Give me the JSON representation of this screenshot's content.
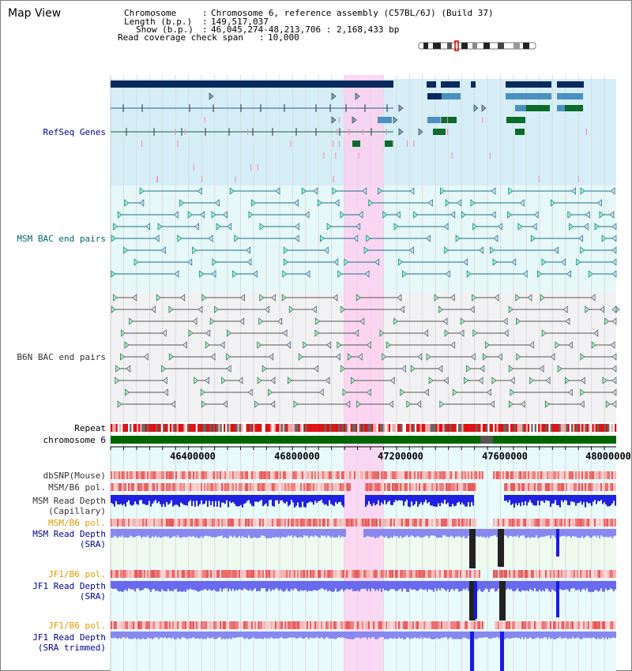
{
  "title": "Map View",
  "header": {
    "chromosome_key": "Chromosome",
    "chromosome_val": "Chromosome 6, reference assembly (C57BL/6J) (Build 37)",
    "length_key": "Length (b.p.)",
    "length_val": "149,517,037",
    "show_key": "Show (b.p.)",
    "show_val": "46,045,274-48,213,706 : 2,168,433 bp",
    "coverage_key": "Read coverage check span",
    "coverage_val": "10,000"
  },
  "tracks": {
    "refseq": "RefSeq Genes",
    "msm_bac": "MSM BAC end pairs",
    "b6n_bac": "B6N BAC end pairs",
    "repeat": "Repeat",
    "chromosome": "chromosome 6",
    "dbsnp": "dbSNP(Mouse)",
    "msm_b6_pol_1": "MSM/B6 pol.",
    "msm_read_depth_cap_1": "MSM Read Depth",
    "msm_read_depth_cap_2": "(Capillary)",
    "msm_b6_pol_2": "MSM/B6 pol.",
    "msm_read_depth_sra_1": "MSM Read Depth",
    "msm_read_depth_sra_2": "(SRA)",
    "jf1_b6_pol_1": "JF1/B6 pol.",
    "jf1_read_depth_sra_1": "JF1 Read Depth",
    "jf1_read_depth_sra_2": "(SRA)",
    "jf1_b6_pol_2": "JF1/B6 pol.",
    "jf1_read_depth_trim_1": "JF1 Read Depth",
    "jf1_read_depth_trim_2": "(SRA trimmed)"
  },
  "axis_ticks": [
    "46400000",
    "46800000",
    "47200000",
    "47600000",
    "48000000"
  ],
  "colors": {
    "label_blue": "#000099",
    "label_teal": "#006666",
    "label_gray": "#333333",
    "label_orange": "#e69900",
    "highlight": "#ffccf0",
    "refseq_bg": "#d6eef8",
    "msm_bg": "#e6f8f8",
    "b6n_bg": "#f2f2f4",
    "gene_dark": "#0a2a5e",
    "gene_mid": "#4a90c0",
    "gene_green": "#0a6b2a",
    "chrom_green": "#006600",
    "depth_blue": "#2a2ae6"
  }
}
